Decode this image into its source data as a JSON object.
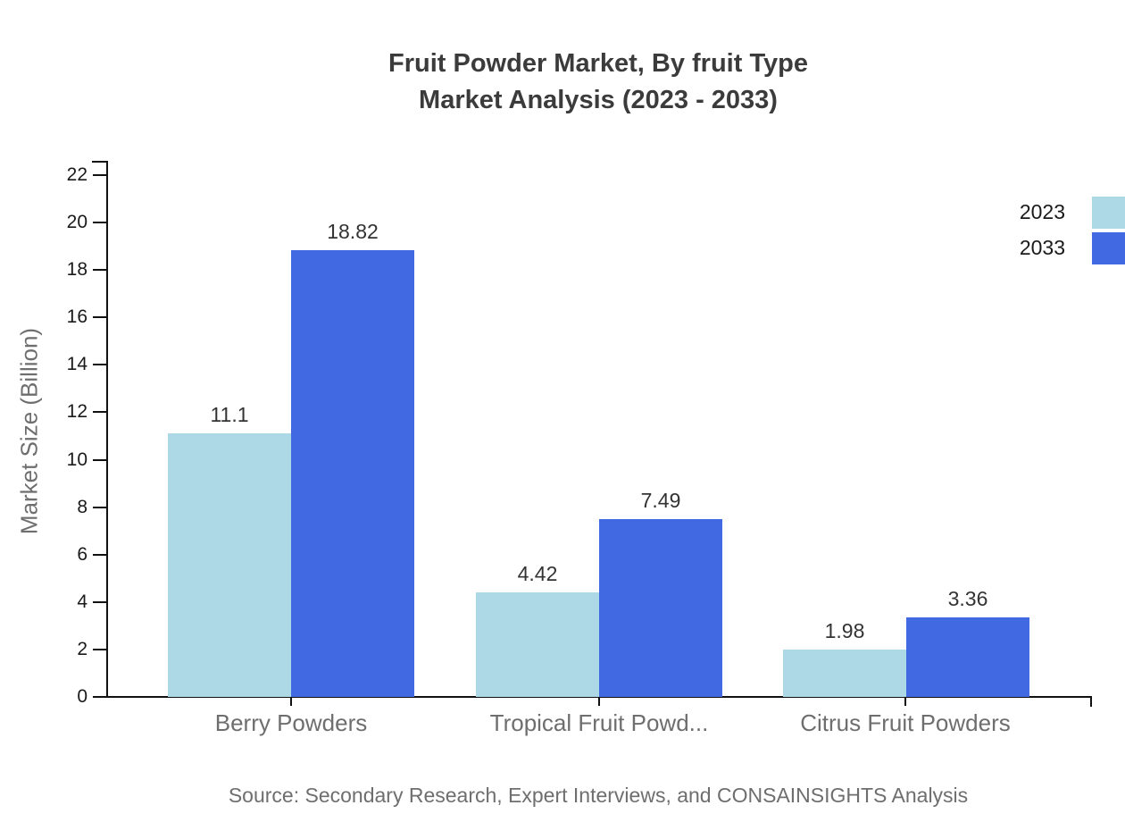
{
  "title": {
    "line1": "Fruit Powder Market, By fruit Type",
    "line2": "Market Analysis (2023 - 2033)"
  },
  "footer": {
    "source": "Source: Secondary Research, Expert Interviews, and CONSAINSIGHTS Analysis"
  },
  "chart_data": {
    "type": "bar",
    "title": "Fruit Powder Market, By fruit Type Market Analysis (2023 - 2033)",
    "categories": [
      "Berry Powders",
      "Tropical Fruit Powd...",
      "Citrus Fruit Powders"
    ],
    "series": [
      {
        "name": "2023",
        "color": "#ADD8E6",
        "values": [
          11.1,
          4.42,
          1.98
        ]
      },
      {
        "name": "2033",
        "color": "#4169E1",
        "values": [
          18.82,
          7.49,
          3.36
        ]
      }
    ],
    "xlabel": "",
    "ylabel": "Market Size (Billion)",
    "ylim": [
      0,
      22
    ],
    "yticks": [
      0,
      2,
      4,
      6,
      8,
      10,
      12,
      14,
      16,
      18,
      20,
      22
    ],
    "grid": false,
    "legend_position": "top-right",
    "value_labels_shown": true,
    "colors": {
      "axis": "#111111",
      "title_text": "#3b3b3b",
      "muted_text": "#6e6e6e",
      "tick_text": "#1a1a1a"
    }
  }
}
